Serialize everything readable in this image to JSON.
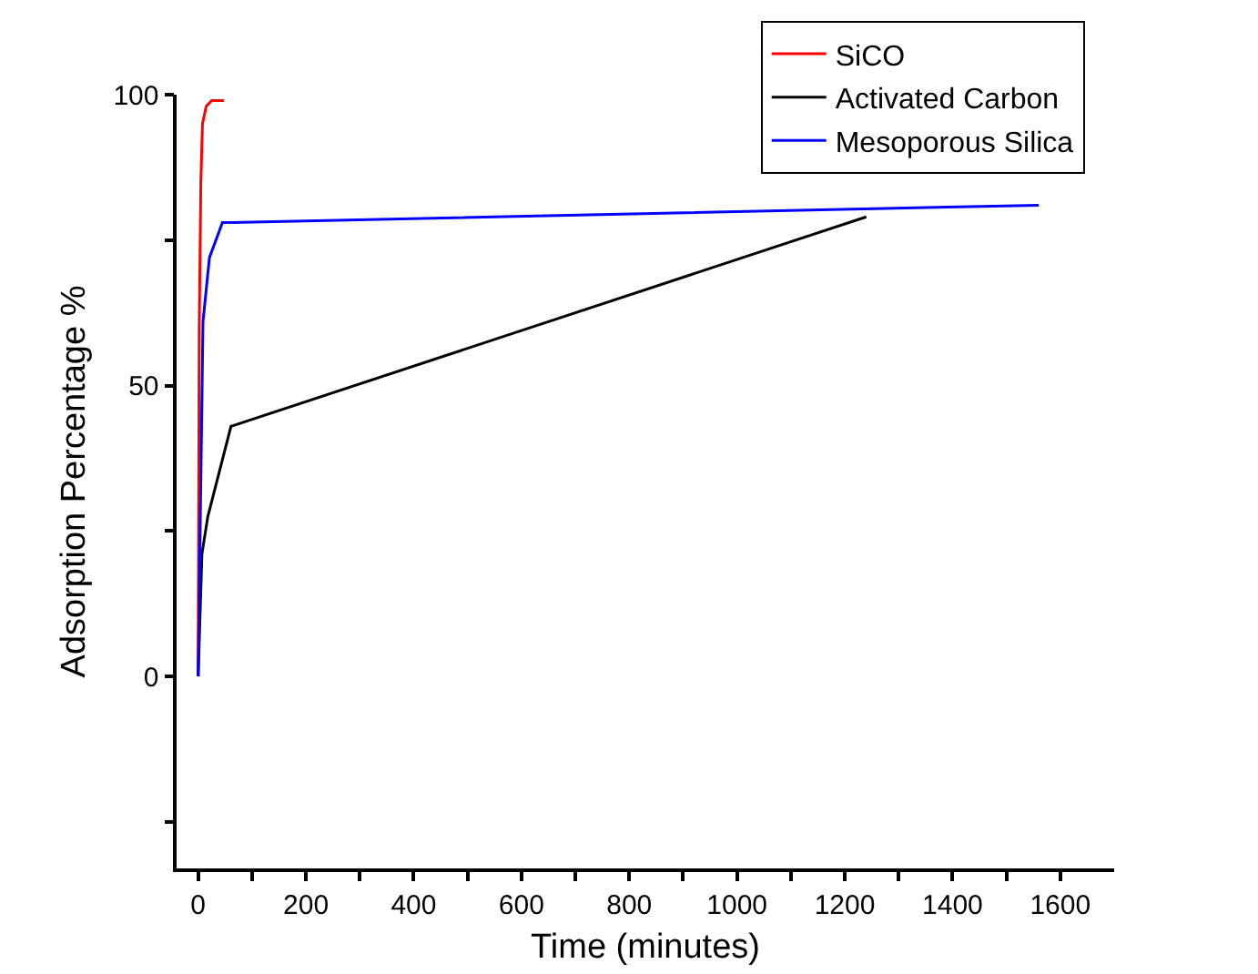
{
  "chart_data": {
    "type": "line",
    "xlabel": "Time (minutes)",
    "ylabel": "Adsorption Percentage %",
    "series": [
      {
        "name": "SiCO",
        "color": "#ff0000",
        "x": [
          0,
          2,
          5,
          8,
          15,
          25,
          48
        ],
        "values": [
          0,
          60,
          85,
          95,
          98,
          99,
          99
        ]
      },
      {
        "name": "Activated Carbon",
        "color": "#000000",
        "x": [
          0,
          7,
          18,
          61,
          1240
        ],
        "values": [
          0,
          21,
          27.5,
          43,
          79
        ]
      },
      {
        "name": "Mesoporous Silica",
        "color": "#0000ff",
        "x": [
          0,
          9,
          21,
          45,
          1560
        ],
        "values": [
          0,
          61,
          72,
          78,
          81
        ]
      }
    ],
    "xlim": [
      -40,
      1700
    ],
    "ylim": [
      -33,
      100
    ],
    "xticks": [
      0,
      {
        "value": 100,
        "label": null
      },
      200,
      {
        "value": 300,
        "label": null
      },
      400,
      {
        "value": 500,
        "label": null
      },
      600,
      {
        "value": 700,
        "label": null
      },
      800,
      {
        "value": 900,
        "label": null
      },
      1000,
      {
        "value": 1100,
        "label": null
      },
      1200,
      {
        "value": 1300,
        "label": null
      },
      1400,
      {
        "value": 1500,
        "label": null
      },
      1600
    ],
    "yticks": [
      {
        "value": -25,
        "label": null
      },
      0,
      {
        "value": 25,
        "label": null
      },
      50,
      {
        "value": 75,
        "label": null
      },
      100
    ],
    "legend": "top right",
    "marker": "none",
    "line_style": "solid"
  }
}
